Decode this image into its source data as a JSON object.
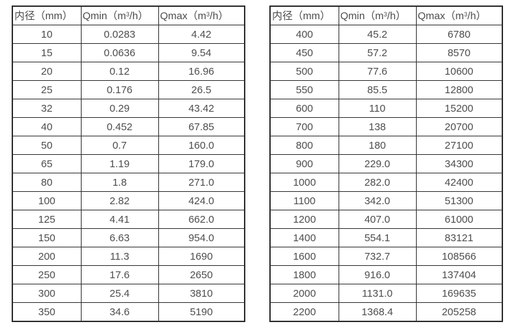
{
  "page": {
    "background": "#ffffff",
    "text_color": "#4d4d4d",
    "border_color": "#2e2e2e"
  },
  "tables": [
    {
      "name": "flow-rate-table-small-diameters",
      "columns": [
        {
          "parts": [
            {
              "t": "内径（mm）"
            }
          ]
        },
        {
          "parts": [
            {
              "t": "Qmin（m"
            },
            {
              "t": "3",
              "sup": true
            },
            {
              "t": "/h）"
            }
          ]
        },
        {
          "parts": [
            {
              "t": "Qmax（m"
            },
            {
              "t": "3",
              "sup": true
            },
            {
              "t": "/h）"
            }
          ]
        }
      ],
      "rows": [
        [
          "10",
          "0.0283",
          "4.42"
        ],
        [
          "15",
          "0.0636",
          "9.54"
        ],
        [
          "20",
          "0.12",
          "16.96"
        ],
        [
          "25",
          "0.176",
          "26.5"
        ],
        [
          "32",
          "0.29",
          "43.42"
        ],
        [
          "40",
          "0.452",
          "67.85"
        ],
        [
          "50",
          "0.7",
          "160.0"
        ],
        [
          "65",
          "1.19",
          "179.0"
        ],
        [
          "80",
          "1.8",
          "271.0"
        ],
        [
          "100",
          "2.82",
          "424.0"
        ],
        [
          "125",
          "4.41",
          "662.0"
        ],
        [
          "150",
          "6.63",
          "954.0"
        ],
        [
          "200",
          "11.3",
          "1690"
        ],
        [
          "250",
          "17.6",
          "2650"
        ],
        [
          "300",
          "25.4",
          "3810"
        ],
        [
          "350",
          "34.6",
          "5190"
        ]
      ]
    },
    {
      "name": "flow-rate-table-large-diameters",
      "columns": [
        {
          "parts": [
            {
              "t": "内径（mm）"
            }
          ]
        },
        {
          "parts": [
            {
              "t": "Qmin（m"
            },
            {
              "t": "3",
              "sup": true
            },
            {
              "t": "/h）"
            }
          ]
        },
        {
          "parts": [
            {
              "t": "Qmax（m"
            },
            {
              "t": "3",
              "sup": true
            },
            {
              "t": "/h）"
            }
          ]
        }
      ],
      "rows": [
        [
          "400",
          "45.2",
          "6780"
        ],
        [
          "450",
          "57.2",
          "8570"
        ],
        [
          "500",
          "77.6",
          "10600"
        ],
        [
          "550",
          "85.5",
          "12800"
        ],
        [
          "600",
          "110",
          "15200"
        ],
        [
          "700",
          "138",
          "20700"
        ],
        [
          "800",
          "180",
          "27100"
        ],
        [
          "900",
          "229.0",
          "34300"
        ],
        [
          "1000",
          "282.0",
          "42400"
        ],
        [
          "1100",
          "342.0",
          "51300"
        ],
        [
          "1200",
          "407.0",
          "61000"
        ],
        [
          "1400",
          "554.1",
          "83121"
        ],
        [
          "1600",
          "732.7",
          "108566"
        ],
        [
          "1800",
          "916.0",
          "137404"
        ],
        [
          "2000",
          "1131.0",
          "169635"
        ],
        [
          "2200",
          "1368.4",
          "205258"
        ]
      ]
    }
  ],
  "chart_data": [
    {
      "type": "table",
      "title": "内径与流量范围（小口径）",
      "columns": [
        "内径（mm）",
        "Qmin（m3/h）",
        "Qmax（m3/h）"
      ],
      "rows": [
        [
          10,
          0.0283,
          4.42
        ],
        [
          15,
          0.0636,
          9.54
        ],
        [
          20,
          0.12,
          16.96
        ],
        [
          25,
          0.176,
          26.5
        ],
        [
          32,
          0.29,
          43.42
        ],
        [
          40,
          0.452,
          67.85
        ],
        [
          50,
          0.7,
          160.0
        ],
        [
          65,
          1.19,
          179.0
        ],
        [
          80,
          1.8,
          271.0
        ],
        [
          100,
          2.82,
          424.0
        ],
        [
          125,
          4.41,
          662.0
        ],
        [
          150,
          6.63,
          954.0
        ],
        [
          200,
          11.3,
          1690
        ],
        [
          250,
          17.6,
          2650
        ],
        [
          300,
          25.4,
          3810
        ],
        [
          350,
          34.6,
          5190
        ]
      ]
    },
    {
      "type": "table",
      "title": "内径与流量范围（大口径）",
      "columns": [
        "内径（mm）",
        "Qmin（m3/h）",
        "Qmax（m3/h）"
      ],
      "rows": [
        [
          400,
          45.2,
          6780
        ],
        [
          450,
          57.2,
          8570
        ],
        [
          500,
          77.6,
          10600
        ],
        [
          550,
          85.5,
          12800
        ],
        [
          600,
          110,
          15200
        ],
        [
          700,
          138,
          20700
        ],
        [
          800,
          180,
          27100
        ],
        [
          900,
          229.0,
          34300
        ],
        [
          1000,
          282.0,
          42400
        ],
        [
          1100,
          342.0,
          51300
        ],
        [
          1200,
          407.0,
          61000
        ],
        [
          1400,
          554.1,
          83121
        ],
        [
          1600,
          732.7,
          108566
        ],
        [
          1800,
          916.0,
          137404
        ],
        [
          2000,
          1131.0,
          169635
        ],
        [
          2200,
          1368.4,
          205258
        ]
      ]
    }
  ]
}
